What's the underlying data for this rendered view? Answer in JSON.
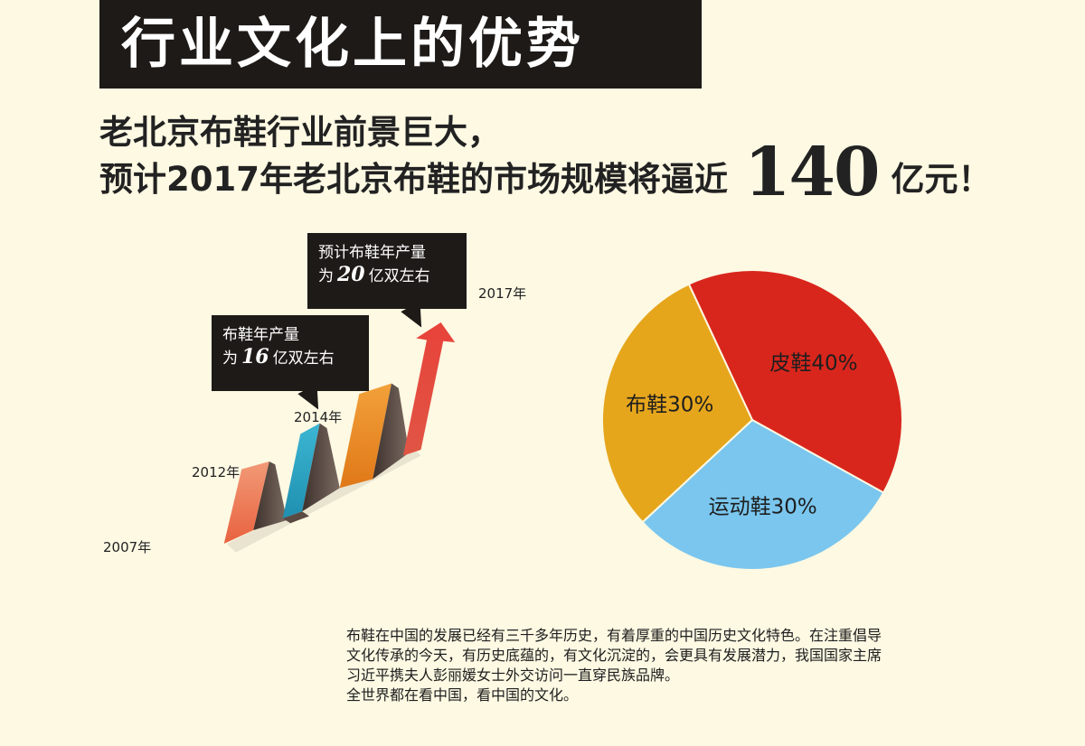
{
  "title": "行业文化上的优势",
  "headline": {
    "line1": "老北京布鞋行业前景巨大，",
    "line2_prefix": "预计2017年老北京布鞋的市场规模将逼近",
    "line2_number": "140",
    "line2_suffix": "亿元！"
  },
  "callouts": [
    {
      "prefix_line1": "预计布鞋年产量",
      "prefix_line2": "为",
      "number": "20",
      "suffix": "亿双左右"
    },
    {
      "prefix_line1": "布鞋年产量",
      "prefix_line2": "为",
      "number": "16",
      "suffix": "亿双左右"
    }
  ],
  "years": [
    "2007年",
    "2012年",
    "2014年",
    "2017年"
  ],
  "chart_data": {
    "type": "pie",
    "slices": [
      {
        "label": "皮鞋40%",
        "value": 40,
        "color": "#d9261c"
      },
      {
        "label": "运动鞋30%",
        "value": 30,
        "color": "#7ac6ee"
      },
      {
        "label": "布鞋30%",
        "value": 30,
        "color": "#e6a61c"
      }
    ]
  },
  "colors": {
    "title_bg": "#1e1a17",
    "background": "#fdf9e3",
    "arrow_red": "#e24a3e",
    "ribbon_orange": "#ee7a55",
    "ribbon_teal": "#2a9fbd",
    "ribbon_amber": "#e88a1c",
    "ribbon_shadow": "#5a4a42"
  },
  "paragraph": [
    "布鞋在中国的发展已经有三千多年历史，有着厚重的中国历史文化特色。在注重倡导",
    "文化传承的今天，有历史底蕴的，有文化沉淀的，会更具有发展潜力，我国国家主席",
    "习近平携夫人彭丽媛女士外交访问一直穿民族品牌。",
    "全世界都在看中国，看中国的文化。"
  ]
}
